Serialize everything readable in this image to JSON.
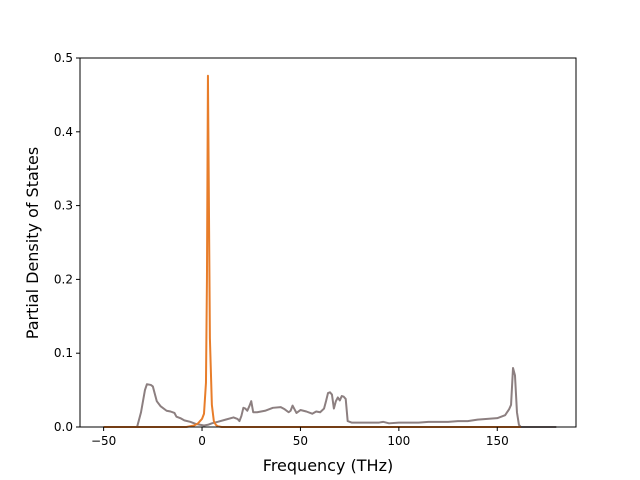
{
  "chart_data": {
    "type": "line",
    "title": "",
    "xlabel": "Frequency (THz)",
    "ylabel": "Partial Density of States",
    "xlim": [
      -62,
      190
    ],
    "ylim": [
      0,
      0.5
    ],
    "xticks": [
      -50,
      0,
      50,
      100,
      150
    ],
    "yticks": [
      0.0,
      0.1,
      0.2,
      0.3,
      0.4,
      0.5
    ],
    "ytick_labels": [
      "0.0",
      "0.1",
      "0.2",
      "0.3",
      "0.4",
      "0.5"
    ],
    "grid": false,
    "legend": "none",
    "series": [
      {
        "color": "#8c7f80",
        "points": [
          [
            -50,
            0.0
          ],
          [
            -33,
            0.0
          ],
          [
            -31,
            0.02
          ],
          [
            -29,
            0.05
          ],
          [
            -28,
            0.058
          ],
          [
            -26,
            0.057
          ],
          [
            -25,
            0.055
          ],
          [
            -24,
            0.045
          ],
          [
            -23,
            0.035
          ],
          [
            -21,
            0.028
          ],
          [
            -18,
            0.022
          ],
          [
            -16,
            0.021
          ],
          [
            -14,
            0.019
          ],
          [
            -13,
            0.014
          ],
          [
            -11,
            0.012
          ],
          [
            -9,
            0.009
          ],
          [
            -6,
            0.007
          ],
          [
            -3,
            0.004
          ],
          [
            -1,
            0.003
          ],
          [
            1,
            0.002
          ],
          [
            3,
            0.003
          ],
          [
            5,
            0.005
          ],
          [
            8,
            0.007
          ],
          [
            12,
            0.01
          ],
          [
            16,
            0.013
          ],
          [
            18,
            0.011
          ],
          [
            19,
            0.008
          ],
          [
            20,
            0.015
          ],
          [
            21,
            0.026
          ],
          [
            22,
            0.025
          ],
          [
            23,
            0.022
          ],
          [
            24,
            0.028
          ],
          [
            25,
            0.035
          ],
          [
            26,
            0.02
          ],
          [
            28,
            0.02
          ],
          [
            32,
            0.022
          ],
          [
            36,
            0.026
          ],
          [
            40,
            0.027
          ],
          [
            42,
            0.024
          ],
          [
            44,
            0.02
          ],
          [
            45,
            0.022
          ],
          [
            46,
            0.029
          ],
          [
            47,
            0.024
          ],
          [
            48,
            0.019
          ],
          [
            50,
            0.023
          ],
          [
            53,
            0.021
          ],
          [
            56,
            0.018
          ],
          [
            58,
            0.021
          ],
          [
            60,
            0.02
          ],
          [
            62,
            0.025
          ],
          [
            63,
            0.035
          ],
          [
            64,
            0.046
          ],
          [
            65,
            0.047
          ],
          [
            66,
            0.044
          ],
          [
            67,
            0.025
          ],
          [
            68,
            0.035
          ],
          [
            69,
            0.04
          ],
          [
            70,
            0.036
          ],
          [
            71,
            0.042
          ],
          [
            72,
            0.041
          ],
          [
            73,
            0.038
          ],
          [
            74,
            0.008
          ],
          [
            76,
            0.006
          ],
          [
            80,
            0.006
          ],
          [
            90,
            0.006
          ],
          [
            92,
            0.007
          ],
          [
            95,
            0.005
          ],
          [
            100,
            0.006
          ],
          [
            105,
            0.006
          ],
          [
            110,
            0.006
          ],
          [
            115,
            0.007
          ],
          [
            120,
            0.007
          ],
          [
            125,
            0.007
          ],
          [
            130,
            0.008
          ],
          [
            135,
            0.008
          ],
          [
            140,
            0.01
          ],
          [
            145,
            0.011
          ],
          [
            150,
            0.012
          ],
          [
            152,
            0.014
          ],
          [
            154,
            0.016
          ],
          [
            155,
            0.02
          ],
          [
            156,
            0.024
          ],
          [
            157,
            0.03
          ],
          [
            158,
            0.08
          ],
          [
            159,
            0.07
          ],
          [
            160,
            0.02
          ],
          [
            161,
            0.003
          ],
          [
            162,
            0.0
          ],
          [
            180,
            0.0
          ]
        ]
      },
      {
        "color": "#e87d2a",
        "points": [
          [
            -50,
            0.0
          ],
          [
            -8,
            0.0
          ],
          [
            -4,
            0.002
          ],
          [
            -2,
            0.005
          ],
          [
            -1,
            0.008
          ],
          [
            0,
            0.011
          ],
          [
            1,
            0.018
          ],
          [
            2,
            0.06
          ],
          [
            2.5,
            0.2
          ],
          [
            3,
            0.476
          ],
          [
            3.5,
            0.3
          ],
          [
            4,
            0.12
          ],
          [
            5,
            0.03
          ],
          [
            6,
            0.008
          ],
          [
            7,
            0.003
          ],
          [
            8,
            0.001
          ],
          [
            10,
            0.0
          ],
          [
            160,
            0.0
          ],
          [
            162,
            0.0
          ]
        ]
      }
    ]
  }
}
